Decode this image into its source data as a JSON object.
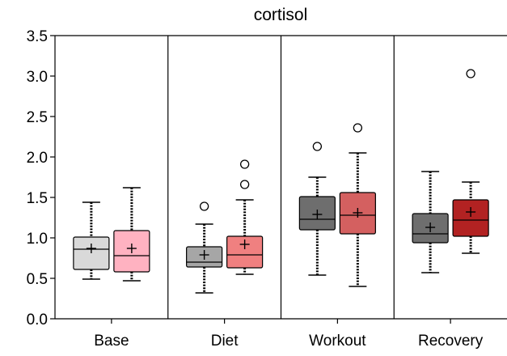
{
  "chart_data": {
    "type": "box",
    "title": "cortisol",
    "xlabel": "",
    "ylabel": "",
    "ylim": [
      0,
      3.5
    ],
    "yticks": [
      "0.0",
      "0.5",
      "1.0",
      "1.5",
      "2.0",
      "2.5",
      "3.0",
      "3.5"
    ],
    "categories": [
      "Base",
      "Diet",
      "Workout",
      "Recovery"
    ],
    "grid": false,
    "groups": [
      {
        "category": "Base",
        "boxes": [
          {
            "color": "#d9d9d9",
            "min": 0.49,
            "q1": 0.61,
            "median": 0.86,
            "q3": 1.01,
            "max": 1.44,
            "mean": 0.87,
            "outliers": []
          },
          {
            "color": "#ffb2c1",
            "min": 0.47,
            "q1": 0.58,
            "median": 0.78,
            "q3": 1.09,
            "max": 1.62,
            "mean": 0.87,
            "outliers": []
          }
        ]
      },
      {
        "category": "Diet",
        "boxes": [
          {
            "color": "#a6a6a6",
            "min": 0.32,
            "q1": 0.64,
            "median": 0.7,
            "q3": 0.89,
            "max": 1.17,
            "mean": 0.79,
            "outliers": [
              1.39
            ]
          },
          {
            "color": "#f08080",
            "min": 0.55,
            "q1": 0.63,
            "median": 0.79,
            "q3": 1.02,
            "max": 1.47,
            "mean": 0.92,
            "outliers": [
              1.66,
              1.91
            ]
          }
        ]
      },
      {
        "category": "Workout",
        "boxes": [
          {
            "color": "#6e6e6e",
            "min": 0.54,
            "q1": 1.1,
            "median": 1.23,
            "q3": 1.51,
            "max": 1.75,
            "mean": 1.29,
            "outliers": [
              2.13
            ]
          },
          {
            "color": "#d46060",
            "min": 0.4,
            "q1": 1.05,
            "median": 1.28,
            "q3": 1.56,
            "max": 2.05,
            "mean": 1.31,
            "outliers": [
              2.36
            ]
          }
        ]
      },
      {
        "category": "Recovery",
        "boxes": [
          {
            "color": "#6e6e6e",
            "min": 0.57,
            "q1": 0.94,
            "median": 1.05,
            "q3": 1.3,
            "max": 1.82,
            "mean": 1.13,
            "outliers": []
          },
          {
            "color": "#b22222",
            "min": 0.81,
            "q1": 1.02,
            "median": 1.22,
            "q3": 1.47,
            "max": 1.69,
            "mean": 1.32,
            "outliers": [
              3.03
            ]
          }
        ]
      }
    ]
  }
}
